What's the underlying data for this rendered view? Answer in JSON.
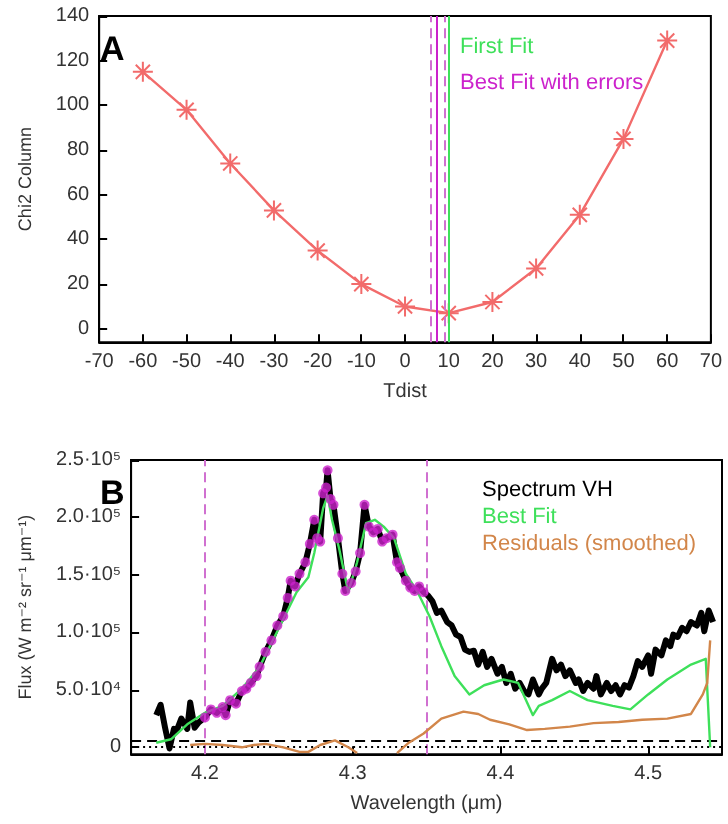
{
  "chart_data": [
    {
      "type": "line",
      "xlabel": "Tdist",
      "ylabel": "Chi2 Column",
      "annotations": [
        "A"
      ],
      "x": [
        -60,
        -50,
        -40,
        -30,
        -20,
        -10,
        0,
        10,
        20,
        30,
        40,
        50,
        60
      ],
      "series": [
        {
          "color": "#f26b6b",
          "values": [
            115,
            98,
            74,
            53,
            35,
            20,
            10,
            7,
            12,
            27,
            51,
            85,
            129
          ]
        }
      ],
      "marker": "cross",
      "xlim": [
        -70,
        70
      ],
      "xticks": [
        -70,
        -60,
        -50,
        -40,
        -30,
        -20,
        -10,
        0,
        10,
        20,
        30,
        40,
        50,
        60,
        70
      ],
      "ylim": [
        -6,
        140
      ],
      "yticks": [
        0,
        20,
        40,
        60,
        80,
        100,
        120,
        140
      ],
      "ref_lines": [
        {
          "axis": "x",
          "value": 9.9,
          "label": "First Fit",
          "color": "#3ee05a",
          "line_style": "solid"
        },
        {
          "axis": "x",
          "value": 7.3,
          "label": "Best Fit with errors",
          "color": "#cc22cc",
          "line_style": "solid"
        },
        {
          "axis": "x",
          "value": 5.8,
          "color": "#d070d0",
          "line_style": "dashed"
        },
        {
          "axis": "x",
          "value": 8.9,
          "color": "#d070d0",
          "line_style": "dashed"
        }
      ]
    },
    {
      "type": "line",
      "xlabel": "Wavelength (μm)",
      "ylabel": "Flux (W m⁻² sr⁻¹ μm⁻¹)",
      "annotations": [
        "B"
      ],
      "series": [
        {
          "name": "Spectrum VH",
          "color": "#000000",
          "x": [
            4.167,
            4.17,
            4.173,
            4.176,
            4.179,
            4.181,
            4.184,
            4.188,
            4.19,
            4.193,
            4.196,
            4.2,
            4.204,
            4.208,
            4.212,
            4.214,
            4.217,
            4.221,
            4.225,
            4.228,
            4.231,
            4.235,
            4.237,
            4.241,
            4.245,
            4.249,
            4.253,
            4.256,
            4.258,
            4.261,
            4.264,
            4.268,
            4.271,
            4.274,
            4.276,
            4.278,
            4.28,
            4.282,
            4.283,
            4.285,
            4.287,
            4.29,
            4.293,
            4.295,
            4.299,
            4.302,
            4.305,
            4.308,
            4.311,
            4.314,
            4.317,
            4.32,
            4.323,
            4.327,
            4.33,
            4.332,
            4.336,
            4.339,
            4.342,
            4.345,
            4.348,
            4.351,
            4.354,
            4.357,
            4.36,
            4.364,
            4.367,
            4.37,
            4.373,
            4.376,
            4.379,
            4.382,
            4.385,
            4.388,
            4.391,
            4.394,
            4.398,
            4.401,
            4.404,
            4.407,
            4.41,
            4.413,
            4.416,
            4.419,
            4.422,
            4.426,
            4.428,
            4.431,
            4.435,
            4.438,
            4.441,
            4.444,
            4.447,
            4.451,
            4.453,
            4.456,
            4.459,
            4.463,
            4.465,
            4.468,
            4.472,
            4.475,
            4.478,
            4.481,
            4.484,
            4.487,
            4.49,
            4.493,
            4.496,
            4.5,
            4.502,
            4.505,
            4.509,
            4.512,
            4.515,
            4.517,
            4.52,
            4.523,
            4.526,
            4.529,
            4.533,
            4.536,
            4.538,
            4.541,
            4.544
          ],
          "values": [
            28000,
            37000,
            17000,
            -1000,
            16000,
            15000,
            25000,
            16000,
            39000,
            17000,
            22000,
            26000,
            33000,
            30000,
            35000,
            28000,
            41000,
            38000,
            49000,
            51000,
            56000,
            62000,
            70000,
            83000,
            93000,
            106000,
            114000,
            130000,
            145000,
            140000,
            151000,
            161000,
            177000,
            198000,
            182000,
            179000,
            221000,
            226000,
            241000,
            216000,
            211000,
            182000,
            151000,
            136000,
            143000,
            153000,
            169000,
            211000,
            192000,
            187000,
            190000,
            179000,
            182000,
            185000,
            161000,
            156000,
            145000,
            139000,
            136000,
            140000,
            135000,
            132000,
            127000,
            117000,
            119000,
            109000,
            106000,
            98000,
            96000,
            85000,
            83000,
            84000,
            72000,
            83000,
            70000,
            77000,
            64000,
            70000,
            56000,
            64000,
            51000,
            56000,
            49000,
            46000,
            59000,
            46000,
            51000,
            56000,
            77000,
            67000,
            72000,
            62000,
            67000,
            56000,
            59000,
            49000,
            56000,
            51000,
            62000,
            46000,
            56000,
            49000,
            54000,
            46000,
            54000,
            52000,
            62000,
            75000,
            70000,
            80000,
            64000,
            85000,
            80000,
            93000,
            88000,
            98000,
            96000,
            104000,
            101000,
            109000,
            106000,
            117000,
            101000,
            119000,
            109000
          ]
        },
        {
          "type": "scatter",
          "color": "#cc22cc",
          "marker": "circle",
          "x": [
            4.2,
            4.204,
            4.208,
            4.212,
            4.214,
            4.217,
            4.221,
            4.225,
            4.228,
            4.231,
            4.235,
            4.237,
            4.241,
            4.245,
            4.249,
            4.253,
            4.256,
            4.258,
            4.261,
            4.264,
            4.268,
            4.271,
            4.274,
            4.276,
            4.278,
            4.28,
            4.282,
            4.283,
            4.285,
            4.287,
            4.29,
            4.293,
            4.295,
            4.299,
            4.302,
            4.305,
            4.308,
            4.311,
            4.314,
            4.317,
            4.32,
            4.323,
            4.327,
            4.33,
            4.332,
            4.336,
            4.339,
            4.342,
            4.345,
            4.348
          ],
          "values": [
            26000,
            33000,
            30000,
            35000,
            28000,
            41000,
            38000,
            49000,
            51000,
            56000,
            62000,
            70000,
            83000,
            93000,
            106000,
            114000,
            130000,
            145000,
            140000,
            151000,
            161000,
            177000,
            198000,
            182000,
            179000,
            221000,
            226000,
            241000,
            216000,
            211000,
            182000,
            151000,
            136000,
            143000,
            153000,
            169000,
            211000,
            192000,
            187000,
            190000,
            179000,
            182000,
            185000,
            161000,
            156000,
            145000,
            139000,
            136000,
            140000,
            135000
          ]
        },
        {
          "name": "Best Fit",
          "color": "#3ee05a",
          "x": [
            4.167,
            4.177,
            4.188,
            4.2,
            4.212,
            4.225,
            4.237,
            4.249,
            4.262,
            4.27,
            4.274,
            4.28,
            4.283,
            4.286,
            4.291,
            4.297,
            4.303,
            4.309,
            4.315,
            4.321,
            4.328,
            4.336,
            4.344,
            4.352,
            4.36,
            4.369,
            4.379,
            4.389,
            4.402,
            4.412,
            4.422,
            4.426,
            4.435,
            4.447,
            4.459,
            4.476,
            4.488,
            4.5,
            4.513,
            4.529,
            4.539,
            4.542
          ],
          "values": [
            4000,
            7000,
            20000,
            30000,
            36000,
            51000,
            70000,
            101000,
            135000,
            148000,
            169000,
            208000,
            219000,
            198000,
            172000,
            135000,
            161000,
            195000,
            198000,
            192000,
            182000,
            151000,
            135000,
            114000,
            88000,
            62000,
            46000,
            54000,
            59000,
            56000,
            28000,
            36000,
            41000,
            49000,
            41000,
            36000,
            33000,
            46000,
            59000,
            72000,
            77000,
            0
          ]
        },
        {
          "name": "Residuals (smoothed)",
          "color": "#d2864a",
          "x": [
            4.19,
            4.2,
            4.212,
            4.225,
            4.233,
            4.241,
            4.253,
            4.264,
            4.27,
            4.278,
            4.288,
            4.297,
            4.303,
            4.315,
            4.33,
            4.338,
            4.348,
            4.36,
            4.375,
            4.385,
            4.393,
            4.406,
            4.418,
            4.43,
            4.447,
            4.463,
            4.48,
            4.496,
            4.513,
            4.529,
            4.537,
            4.54,
            4.542
          ],
          "values": [
            2000,
            3000,
            2000,
            0,
            2000,
            3000,
            0,
            -4000,
            -4000,
            2000,
            6000,
            0,
            -5000,
            null,
            -5000,
            4000,
            12000,
            25000,
            31000,
            29000,
            24000,
            20000,
            15000,
            16000,
            18000,
            21000,
            22000,
            24000,
            25000,
            29000,
            46000,
            56000,
            93000
          ]
        }
      ],
      "marker": "none",
      "legend": "top right",
      "xlim": [
        4.15,
        4.55
      ],
      "xticks": [
        4.2,
        4.3,
        4.4,
        4.5
      ],
      "ylim": [
        -6000,
        250000
      ],
      "yticks": [
        {
          "value": 0,
          "label": "0"
        },
        {
          "value": 50000,
          "label": "5.0·10⁴"
        },
        {
          "value": 100000,
          "label": "1.0·10⁵"
        },
        {
          "value": 150000,
          "label": "1.5·10⁵"
        },
        {
          "value": 200000,
          "label": "2.0·10⁵"
        },
        {
          "value": 250000,
          "label": "2.5·10⁵"
        }
      ],
      "ref_lines": [
        {
          "axis": "x",
          "value": 4.2,
          "color": "#d070d0",
          "line_style": "dashed"
        },
        {
          "axis": "x",
          "value": 4.35,
          "color": "#d070d0",
          "line_style": "dashed"
        },
        {
          "axis": "y",
          "value": 6000,
          "color": "#000000",
          "line_style": "dashed"
        },
        {
          "axis": "y",
          "value": 0,
          "color": "#000000",
          "line_style": "dotted"
        }
      ]
    }
  ]
}
